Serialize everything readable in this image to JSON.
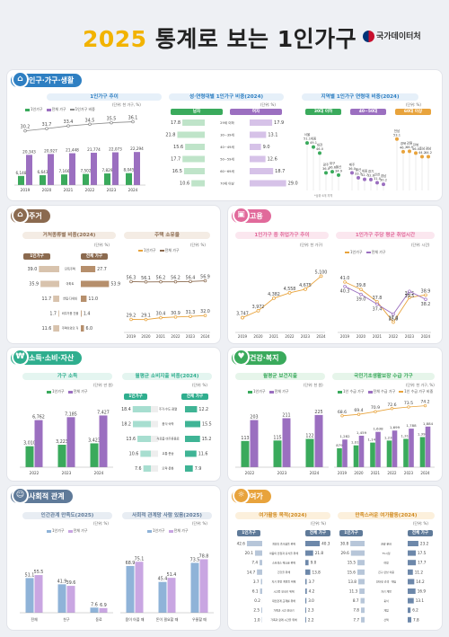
{
  "header": {
    "year": "2025",
    "title": "통계로 보는 1인가구",
    "org": "국가데이터처"
  },
  "colors": {
    "green": "#3aaa5c",
    "purple": "#9b6fc0",
    "orange": "#e8a33c",
    "gray": "#8a8a8a",
    "blue": "#2e7fc2",
    "brown": "#8b6a4f",
    "pink": "#e16a9b",
    "teal": "#2fae8e",
    "slate": "#5f7a99"
  },
  "sections": {
    "pop": {
      "title": "인구·가구·생활",
      "icon": "house-icon"
    },
    "housing": {
      "title": "주거",
      "icon": "home-icon"
    },
    "employment": {
      "title": "고용",
      "icon": "briefcase-icon"
    },
    "income": {
      "title": "소득·소비·자산",
      "icon": "coin-icon"
    },
    "health": {
      "title": "건강·복지",
      "icon": "heart-icon"
    },
    "social": {
      "title": "사회적 관계",
      "icon": "people-icon"
    },
    "leisure": {
      "title": "여가",
      "icon": "leisure-icon"
    }
  },
  "chart_data": [
    {
      "id": "trend",
      "type": "bar",
      "title": "1인가구 추이",
      "unit": "(단위: 천 가구, %)",
      "categories": [
        "2019",
        "2020",
        "2021",
        "2022",
        "2023",
        "2024"
      ],
      "series": [
        {
          "name": "1인가구",
          "values": [
            6148,
            6643,
            7166,
            7502,
            7829,
            8045
          ],
          "labels": [
            "6,148",
            "6,643",
            "7,166",
            "7,502",
            "7,829",
            "8,045"
          ]
        },
        {
          "name": "전체 가구",
          "values": [
            20343,
            20927,
            21448,
            21774,
            22073,
            22294
          ],
          "labels": [
            "20,343",
            "20,927",
            "21,448",
            "21,774",
            "22,073",
            "22,294"
          ]
        },
        {
          "name": "1인가구 비중",
          "values": [
            30.2,
            31.7,
            33.4,
            34.5,
            35.5,
            36.1
          ],
          "labels": [
            "30.2",
            "31.7",
            "33.4",
            "34.5",
            "35.5",
            "36.1"
          ]
        }
      ]
    },
    {
      "id": "gender_age",
      "type": "bar",
      "title": "성·연령대별 1인가구 비중(2024)",
      "unit": "(단위: %)",
      "left_label": "남자",
      "right_label": "여자",
      "categories": [
        "29세 이하",
        "30~39세",
        "40~49세",
        "50~59세",
        "60~69세",
        "70세 이상"
      ],
      "series": [
        {
          "name": "남자",
          "values": [
            17.8,
            21.8,
            15.6,
            17.7,
            16.5,
            10.6
          ]
        },
        {
          "name": "여자",
          "values": [
            17.9,
            13.1,
            9.0,
            12.6,
            18.7,
            29.0
          ]
        }
      ]
    },
    {
      "id": "regional",
      "type": "scatter",
      "title": "지역별 1인가구 연령대 비중(2024)",
      "unit": "(단위: %)",
      "groups": [
        {
          "label": "30대 이하",
          "points": [
            [
              "서울",
              "51.1"
            ],
            [
              "세종",
              "49.1"
            ],
            [
              "대전",
              "46.0"
            ],
            [
              "광주",
              "36.0"
            ],
            [
              "대구",
              "36.6"
            ],
            [
              "울산",
              "34.9"
            ]
          ]
        },
        {
          "label": "40~50대",
          "points": [
            [
              "제주",
              "36.0"
            ],
            [
              "울산",
              "33.5"
            ],
            [
              "세종",
              "32.7"
            ],
            [
              "경기",
              "32.6"
            ],
            [
              "인천",
              "31.0"
            ],
            [
              "경남",
              "30.2"
            ]
          ]
        },
        {
          "label": "60대 이상",
          "points": [
            [
              "전남",
              "53.1"
            ],
            [
              "경북",
              "46.7"
            ],
            [
              "강원",
              "46.9"
            ],
            [
              "전북",
              "46.0"
            ],
            [
              "충남",
              "44.2"
            ],
            [
              "경남",
              "44.2"
            ]
          ]
        }
      ],
      "note": "*상위 6개 지역"
    },
    {
      "id": "house_type",
      "type": "bar",
      "title": "거처종류별 비중(2024)",
      "unit": "(단위: %)",
      "left_label": "1인가구",
      "right_label": "전체 가구",
      "categories": [
        "단독주택",
        "아파트",
        "연립·다세대",
        "비주거용 건물 내 주택",
        "주택이외의 거처(오피스텔 등)"
      ],
      "series": [
        {
          "name": "1인가구",
          "values": [
            39.0,
            35.9,
            11.7,
            1.7,
            11.6
          ]
        },
        {
          "name": "전체 가구",
          "values": [
            27.7,
            53.9,
            11.0,
            1.4,
            6.0
          ]
        }
      ]
    },
    {
      "id": "home_own",
      "type": "line",
      "title": "주택 소유율",
      "unit": "(단위: %)",
      "categories": [
        "2019",
        "2020",
        "2021",
        "2022",
        "2023",
        "2024"
      ],
      "series": [
        {
          "name": "1인가구",
          "values": [
            29.2,
            29.1,
            30.4,
            30.9,
            31.3,
            32.0
          ]
        },
        {
          "name": "전체 가구",
          "values": [
            56.3,
            56.1,
            56.2,
            56.2,
            56.4,
            56.9
          ]
        }
      ]
    },
    {
      "id": "emp_trend",
      "type": "line",
      "title": "1인가구 중 취업가구 추이",
      "unit": "(단위: 천 가구)",
      "categories": [
        "2019",
        "2020",
        "2021",
        "2022",
        "2023",
        "2024"
      ],
      "values": [
        3747,
        3972,
        4382,
        4558,
        4675,
        5100
      ],
      "labels": [
        "3,747",
        "3,972",
        "4,382",
        "4,558",
        "4,675",
        "5,100"
      ]
    },
    {
      "id": "work_hours",
      "type": "line",
      "title": "1인가구 주당 평균 취업시간",
      "unit": "(단위: 시간)",
      "categories": [
        "2019",
        "2020",
        "2021",
        "2022",
        "2023",
        "2024"
      ],
      "series": [
        {
          "name": "1인가구",
          "values": [
            41.0,
            39.8,
            37.8,
            27.0,
            38.5,
            38.9
          ]
        },
        {
          "name": "전체 가구",
          "values": [
            40.3,
            39.0,
            37.4,
            35.8,
            39.5,
            38.2
          ]
        }
      ]
    },
    {
      "id": "income",
      "type": "bar",
      "title": "가구 소득",
      "unit": "(단위: 만 원)",
      "categories": [
        "2022",
        "2023",
        "2024"
      ],
      "series": [
        {
          "name": "1인가구",
          "values": [
            3010,
            3223,
            3423
          ],
          "labels": [
            "3,010",
            "3,223",
            "3,423"
          ]
        },
        {
          "name": "전체 가구",
          "values": [
            6762,
            7185,
            7427
          ],
          "labels": [
            "6,762",
            "7,185",
            "7,427"
          ]
        }
      ]
    },
    {
      "id": "spending",
      "type": "bar",
      "title": "월평균 소비지출 비중(2024)",
      "unit": "(단위: %)",
      "left_label": "1인가구",
      "right_label": "전체 가구",
      "categories": [
        "주거·수도·광열",
        "음식·숙박",
        "식료품·비주류음료",
        "교통·운송",
        "오락·문화"
      ],
      "series": [
        {
          "name": "1인가구",
          "values": [
            18.4,
            18.2,
            13.6,
            10.6,
            7.6
          ]
        },
        {
          "name": "전체 가구",
          "values": [
            12.2,
            15.5,
            15.2,
            11.6,
            7.9
          ]
        }
      ]
    },
    {
      "id": "health_cost",
      "type": "bar",
      "title": "월평균 보건지출",
      "unit": "(단위: 천 원)",
      "categories": [
        "2022",
        "2023",
        "2024"
      ],
      "series": [
        {
          "name": "1인가구",
          "values": [
            113,
            115,
            122
          ]
        },
        {
          "name": "전체 가구",
          "values": [
            203,
            211,
            225
          ]
        }
      ]
    },
    {
      "id": "welfare",
      "type": "bar",
      "title": "국민기초생활보장 수급 가구",
      "unit": "(단위: 천 가구, %)",
      "categories": [
        "2019",
        "2020",
        "2021",
        "2022",
        "2023",
        "2024"
      ],
      "series": [
        {
          "name": "1인 수급 가구",
          "values": [
            879,
            1012,
            1141,
            1235,
            1314,
            1397
          ],
          "labels": [
            "879",
            "1,012",
            "1,141",
            "1,235",
            "1,314",
            "1,397"
          ]
        },
        {
          "name": "전체 수급 가구",
          "values": [
            1282,
            1459,
            1638,
            1699,
            1788,
            1884
          ],
          "labels": [
            "1,282",
            "1,459",
            "1,638",
            "1,699",
            "1,788",
            "1,884"
          ]
        },
        {
          "name": "1인 수급 가구 비중",
          "values": [
            68.6,
            69.4,
            70.9,
            72.6,
            73.5,
            74.2
          ],
          "labels": [
            "68.6",
            "69.4",
            "70.9",
            "72.6",
            "73.5",
            "74.2"
          ]
        }
      ]
    },
    {
      "id": "relations",
      "type": "bar",
      "title": "인간관계 만족도(2025)",
      "unit": "(단위: %)",
      "categories": [
        "전체",
        "친구",
        "동료"
      ],
      "series": [
        {
          "name": "1인가구",
          "values": [
            51.1,
            41.9,
            7.6
          ]
        },
        {
          "name": "전체 가구",
          "values": [
            55.5,
            39.6,
            6.9
          ]
        }
      ]
    },
    {
      "id": "support",
      "type": "bar",
      "title": "사회적 관계망 사람 있음(2025)",
      "unit": "(단위: %)",
      "categories": [
        "몸이 아플 때",
        "돈이 필요할 때",
        "우울할 때"
      ],
      "series": [
        {
          "name": "1인가구",
          "values": [
            68.9,
            45.4,
            73.5
          ]
        },
        {
          "name": "전체 가구",
          "values": [
            75.1,
            51.4,
            78.8
          ]
        }
      ]
    },
    {
      "id": "leisure_use",
      "type": "bar",
      "title": "여가활동 목적(2024)",
      "unit": "(단위: %)",
      "left_label": "1인가구",
      "right_label": "전체 가구",
      "categories": [
        "개인의 즐거움을 위해",
        "마음의 안정과 휴식을 위해",
        "스트레스 해소를 위해",
        "건강을 위해",
        "자기 발전 계발을 위해",
        "시간을 보내기 위해",
        "대인관계·교제를 위해",
        "가족과 시간 보내기",
        "가족과 함께 시간을 위해"
      ],
      "series": [
        {
          "name": "1인가구",
          "values": [
            42.6,
            20.1,
            7.4,
            14.7,
            3.7,
            6.1,
            0.2,
            2.5,
            1.0
          ]
        },
        {
          "name": "전체 가구",
          "values": [
            40.3,
            21.8,
            9.0,
            13.8,
            3.7,
            4.2,
            3.0,
            2.3,
            2.2
          ]
        }
      ]
    },
    {
      "id": "leisure_sat",
      "type": "bar",
      "title": "만족스러운 여가활동(2024)",
      "unit": "(단위: %)",
      "left_label": "1인가구",
      "right_label": "전체 가구",
      "categories": [
        "관광·문화",
        "TV시청",
        "여행",
        "친구 만남 이용",
        "인터넷 검색 · 채팅",
        "자기 계발",
        "휴식",
        "게임",
        "산책"
      ],
      "series": [
        {
          "name": "1인가구",
          "values": [
            30.8,
            29.6,
            15.5,
            15.6,
            13.8,
            11.3,
            8.7,
            7.8,
            7.7
          ]
        },
        {
          "name": "전체 가구",
          "values": [
            23.2,
            17.5,
            17.7,
            11.2,
            14.2,
            16.9,
            13.1,
            6.2,
            7.8
          ]
        }
      ]
    }
  ]
}
